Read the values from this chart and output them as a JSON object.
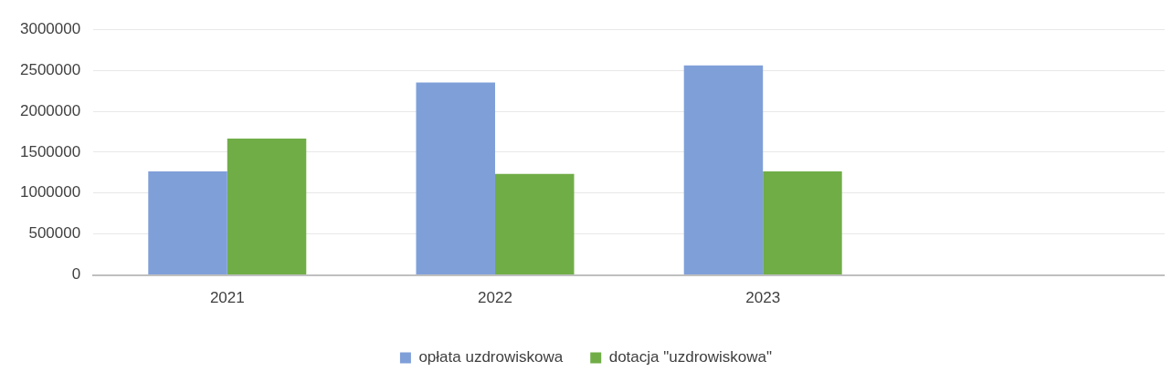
{
  "chart_data": {
    "type": "bar",
    "categories": [
      "2021",
      "2022",
      "2023",
      null
    ],
    "series": [
      {
        "name": "opłata uzdrowiskowa",
        "color": "#7f9fd9",
        "values": [
          1265000,
          2350000,
          2560000,
          null
        ]
      },
      {
        "name": "dotacja \"uzdrowiskowa\"",
        "color": "#70ad47",
        "values": [
          1665000,
          1235000,
          1265000,
          null
        ]
      }
    ],
    "ylim": [
      0,
      3000000
    ],
    "yticks": [
      0,
      500000,
      1000000,
      1500000,
      2000000,
      2500000,
      3000000
    ],
    "grid": "y",
    "legend": "bottom"
  }
}
